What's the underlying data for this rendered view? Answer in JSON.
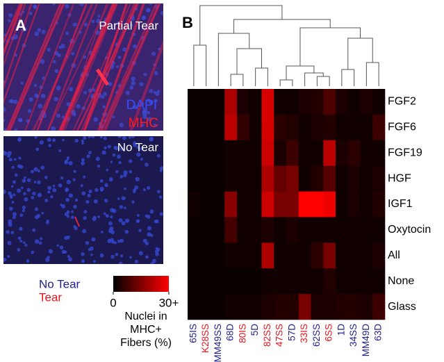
{
  "panel_a": {
    "label": "A",
    "images": [
      {
        "title": "Partial Tear",
        "stains": [
          {
            "name": "DAPI",
            "color": "#2f4fff"
          },
          {
            "name": "MHC",
            "color": "#ff1a1a"
          }
        ]
      },
      {
        "title": "No Tear"
      }
    ],
    "legend": [
      {
        "name": "No Tear",
        "color": "#1f1f8f"
      },
      {
        "name": "Tear",
        "color": "#e8141c"
      }
    ]
  },
  "chart_data": {
    "type": "heatmap",
    "panel_label": "B",
    "x_categories": [
      "65IS",
      "K28SS",
      "MM49SS",
      "68D",
      "80IS",
      "5D",
      "82SS",
      "47SS",
      "57D",
      "33IS",
      "62SS",
      "6SS",
      "1D",
      "34SS",
      "MM49D",
      "63D"
    ],
    "x_label_colors": [
      "#1f1f8f",
      "#e8141c",
      "#1f1f8f",
      "#1f1f8f",
      "#e8141c",
      "#1f1f8f",
      "#e8141c",
      "#e8141c",
      "#1f1f8f",
      "#e8141c",
      "#1f1f8f",
      "#e8141c",
      "#1f1f8f",
      "#1f1f8f",
      "#1f1f8f",
      "#1f1f8f"
    ],
    "y_categories": [
      "FGF2",
      "FGF6",
      "FGF19",
      "HGF",
      "IGF1",
      "Oxytocin",
      "All",
      "None",
      "Glass"
    ],
    "values": [
      [
        1,
        1,
        1,
        20,
        3,
        2,
        25,
        2,
        2,
        3,
        4,
        9,
        3,
        2,
        3,
        2
      ],
      [
        1,
        1,
        1,
        22,
        6,
        2,
        25,
        5,
        4,
        2,
        3,
        4,
        2,
        2,
        2,
        7
      ],
      [
        1,
        1,
        1,
        2,
        2,
        2,
        24,
        3,
        7,
        2,
        2,
        22,
        3,
        5,
        2,
        2
      ],
      [
        1,
        1,
        1,
        2,
        2,
        2,
        20,
        12,
        14,
        2,
        4,
        10,
        2,
        3,
        2,
        3
      ],
      [
        2,
        1,
        1,
        16,
        2,
        2,
        24,
        14,
        14,
        30,
        30,
        28,
        2,
        3,
        2,
        4
      ],
      [
        1,
        1,
        1,
        8,
        2,
        2,
        3,
        2,
        3,
        2,
        2,
        2,
        2,
        2,
        2,
        2
      ],
      [
        1,
        1,
        1,
        2,
        2,
        2,
        20,
        2,
        2,
        2,
        5,
        14,
        2,
        2,
        2,
        3
      ],
      [
        1,
        1,
        1,
        1,
        1,
        1,
        2,
        2,
        2,
        2,
        2,
        4,
        2,
        2,
        2,
        2
      ],
      [
        1,
        1,
        1,
        2,
        2,
        2,
        3,
        4,
        4,
        14,
        3,
        3,
        4,
        4,
        3,
        7
      ]
    ],
    "colorbar": {
      "range": [
        0,
        30
      ],
      "colors": [
        "#000000",
        "#ff0000"
      ],
      "ticks": [
        0,
        {
          "value": 30,
          "label": "30+"
        }
      ],
      "label": [
        "Nuclei in",
        "MHC+",
        "Fibers (%)"
      ]
    }
  }
}
